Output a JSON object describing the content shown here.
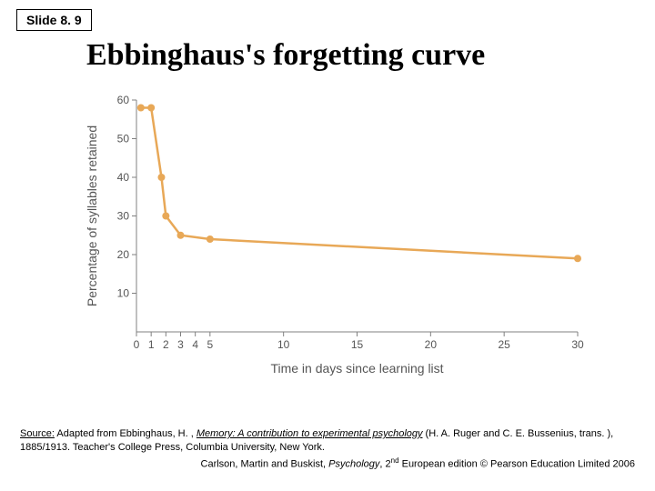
{
  "slide_badge": "Slide 8. 9",
  "title": "Ebbinghaus's forgetting curve",
  "chart": {
    "type": "line",
    "line_color": "#e8a857",
    "marker_color": "#e8a857",
    "marker_radius": 4,
    "line_width": 2.5,
    "background_color": "#ffffff",
    "axis_color": "#808080",
    "tick_label_fontsize": 12,
    "axis_title_fontsize": 14,
    "tick_label_color": "#555555",
    "x": [
      0.3,
      1,
      1.7,
      2,
      3,
      5,
      30
    ],
    "y": [
      58,
      58,
      40,
      30,
      25,
      24,
      19
    ],
    "xlim": [
      0,
      30
    ],
    "ylim": [
      0,
      60
    ],
    "xticks": [
      0,
      1,
      2,
      3,
      4,
      5,
      10,
      15,
      20,
      25,
      30
    ],
    "yticks": [
      10,
      20,
      30,
      40,
      50,
      60
    ],
    "xlabel": "Time in days since learning list",
    "ylabel": "Percentage of syllables retained",
    "tick_len": 5
  },
  "source_line1_a": "Source:",
  "source_line1_b": " Adapted from Ebbinghaus, H. , ",
  "source_line1_ital": "Memory: A contribution to experimental psychology",
  "source_line1_c": " (H. A. Ruger and C. E. Bussenius, trans. ), 1885/1913. Teacher's College Press, Columbia University, New York.",
  "credit_a": "Carlson, Martin and Buskist, ",
  "credit_book": "Psychology",
  "credit_b": ", 2",
  "credit_ord": "nd",
  "credit_c": " European edition © Pearson Education Limited 2006"
}
